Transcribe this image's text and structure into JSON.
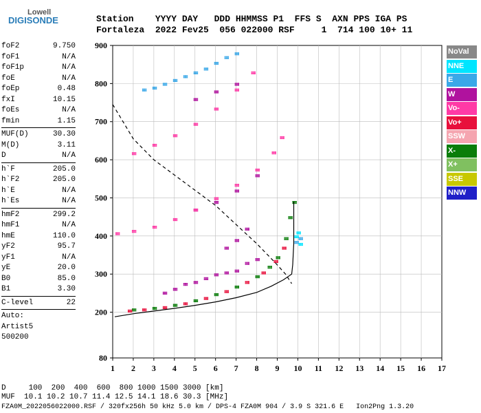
{
  "logo": {
    "top": "Lowell",
    "bottom": "DIGISONDE"
  },
  "header": {
    "row1": "Station    YYYY DAY   DDD HHMMSS P1  FFS S  AXN PPS IGA PS",
    "row2": "Fortaleza  2022 Fev25  056 022000 RSF     1  714 100 10+ 11"
  },
  "params": [
    {
      "label": "foF2",
      "value": "9.750"
    },
    {
      "label": "foF1",
      "value": "N/A"
    },
    {
      "label": "foF1p",
      "value": "N/A"
    },
    {
      "label": "foE",
      "value": "N/A"
    },
    {
      "label": "foEp",
      "value": "0.48"
    },
    {
      "label": "fxI",
      "value": "10.15"
    },
    {
      "label": "foEs",
      "value": "N/A"
    },
    {
      "label": "fmin",
      "value": "1.15"
    },
    {
      "sep": true
    },
    {
      "label": "MUF(D)",
      "value": "30.30"
    },
    {
      "label": "M(D)",
      "value": "3.11"
    },
    {
      "label": "D",
      "value": "N/A"
    },
    {
      "sep": true
    },
    {
      "label": "h`F",
      "value": "205.0"
    },
    {
      "label": "h`F2",
      "value": "205.0"
    },
    {
      "label": "h`E",
      "value": "N/A"
    },
    {
      "label": "h`Es",
      "value": "N/A"
    },
    {
      "sep": true
    },
    {
      "label": "hmF2",
      "value": "299.2"
    },
    {
      "label": "hmF1",
      "value": "N/A"
    },
    {
      "label": "hmE",
      "value": "110.0"
    },
    {
      "label": "yF2",
      "value": "95.7"
    },
    {
      "label": "yF1",
      "value": "N/A"
    },
    {
      "label": "yE",
      "value": "20.0"
    },
    {
      "label": "B0",
      "value": "85.0"
    },
    {
      "label": "B1",
      "value": "3.30"
    },
    {
      "sep": true
    },
    {
      "label": "C-level",
      "value": "22"
    },
    {
      "sep": true
    },
    {
      "label": "Auto:",
      "value": ""
    },
    {
      "label": "Artist5",
      "value": ""
    },
    {
      "label": "500200",
      "value": ""
    }
  ],
  "legend": [
    {
      "label": "NoVal",
      "color": "#888888"
    },
    {
      "label": "NNE",
      "color": "#00e5ff"
    },
    {
      "label": "E",
      "color": "#3aa8e8"
    },
    {
      "label": "W",
      "color": "#b0129e"
    },
    {
      "label": "Vo-",
      "color": "#ff3aa6"
    },
    {
      "label": "Vo+",
      "color": "#e8103c"
    },
    {
      "label": "SSW",
      "color": "#f5a5b0"
    },
    {
      "label": "X-",
      "color": "#0a7d0a"
    },
    {
      "label": "X+",
      "color": "#80c060"
    },
    {
      "label": "SSE",
      "color": "#c8c800"
    },
    {
      "label": "NNW",
      "color": "#2020c8"
    }
  ],
  "footer": {
    "row1": "D     100  200  400  600  800 1000 1500 3000 [km]",
    "row2": "MUF  10.1 10.2 10.7 11.4 12.5 14.1 18.6 30.3 [MHz]",
    "row3": "FZA0M_2022056022000.RSF / 320fx256h 50 kHz 5.0 km / DPS-4 FZA0M 904 / 3.9 S 321.6 E   Ion2Png 1.3.20"
  },
  "chart_data": {
    "type": "scatter",
    "xlim": [
      1,
      17
    ],
    "ylim": [
      80,
      900
    ],
    "x_ticks": [
      1,
      2,
      3,
      4,
      5,
      6,
      7,
      8,
      9,
      10,
      11,
      12,
      13,
      14,
      15,
      16,
      17
    ],
    "y_ticks": [
      80,
      200,
      300,
      400,
      500,
      600,
      700,
      800,
      900
    ],
    "grid": true,
    "series": [
      {
        "name": "X-",
        "color": "#0a7d0a",
        "points": [
          [
            2.0,
            208
          ],
          [
            3.0,
            212
          ],
          [
            4.0,
            220
          ],
          [
            5.0,
            232
          ],
          [
            6.0,
            248
          ],
          [
            7.0,
            268
          ],
          [
            8.0,
            295
          ],
          [
            8.6,
            320
          ],
          [
            9.0,
            345
          ],
          [
            9.4,
            395
          ],
          [
            9.6,
            450
          ],
          [
            9.8,
            490
          ]
        ]
      },
      {
        "name": "Vo+",
        "color": "#e8103c",
        "points": [
          [
            1.8,
            205
          ],
          [
            2.5,
            208
          ],
          [
            3.5,
            214
          ],
          [
            4.5,
            224
          ],
          [
            5.5,
            238
          ],
          [
            6.5,
            256
          ],
          [
            7.5,
            280
          ],
          [
            8.3,
            305
          ],
          [
            8.9,
            335
          ],
          [
            9.3,
            370
          ]
        ]
      },
      {
        "name": "W",
        "color": "#b0129e",
        "points": [
          [
            3.5,
            252
          ],
          [
            4.0,
            262
          ],
          [
            4.5,
            275
          ],
          [
            5.0,
            280
          ],
          [
            5.5,
            290
          ],
          [
            6.0,
            300
          ],
          [
            6.5,
            305
          ],
          [
            7.0,
            310
          ],
          [
            7.5,
            330
          ],
          [
            8.0,
            340
          ],
          [
            6.5,
            370
          ],
          [
            7.0,
            390
          ],
          [
            7.5,
            420
          ],
          [
            5.0,
            470
          ],
          [
            6.0,
            490
          ],
          [
            7.0,
            520
          ],
          [
            8.0,
            560
          ],
          [
            5.0,
            760
          ],
          [
            6.0,
            780
          ],
          [
            7.0,
            800
          ]
        ]
      },
      {
        "name": "Vo-",
        "color": "#ff3aa6",
        "points": [
          [
            1.2,
            408
          ],
          [
            2.0,
            414
          ],
          [
            3.0,
            425
          ],
          [
            4.0,
            445
          ],
          [
            5.0,
            470
          ],
          [
            6.0,
            500
          ],
          [
            7.0,
            535
          ],
          [
            8.0,
            575
          ],
          [
            8.8,
            620
          ],
          [
            9.2,
            660
          ],
          [
            2.0,
            618
          ],
          [
            3.0,
            640
          ],
          [
            4.0,
            665
          ],
          [
            5.0,
            695
          ],
          [
            6.0,
            735
          ],
          [
            7.0,
            785
          ],
          [
            7.8,
            830
          ]
        ]
      },
      {
        "name": "E",
        "color": "#3aa8e8",
        "points": [
          [
            2.5,
            785
          ],
          [
            3.0,
            790
          ],
          [
            3.5,
            800
          ],
          [
            4.0,
            810
          ],
          [
            4.5,
            820
          ],
          [
            5.0,
            830
          ],
          [
            5.5,
            840
          ],
          [
            6.0,
            855
          ],
          [
            6.5,
            870
          ],
          [
            7.0,
            880
          ],
          [
            9.9,
            385
          ],
          [
            10.1,
            395
          ]
        ]
      },
      {
        "name": "NNE",
        "color": "#00e5ff",
        "points": [
          [
            9.9,
            400
          ],
          [
            10.0,
            410
          ],
          [
            10.1,
            380
          ]
        ]
      }
    ],
    "profile_curve_solid": [
      [
        1.1,
        188
      ],
      [
        2,
        196
      ],
      [
        3,
        203
      ],
      [
        4,
        210
      ],
      [
        5,
        218
      ],
      [
        6,
        227
      ],
      [
        7,
        238
      ],
      [
        8,
        252
      ],
      [
        8.7,
        268
      ],
      [
        9.3,
        285
      ],
      [
        9.7,
        300
      ],
      [
        9.75,
        325
      ],
      [
        9.8,
        380
      ],
      [
        9.8,
        430
      ],
      [
        9.8,
        490
      ]
    ],
    "profile_curve_dashed": [
      [
        1.0,
        745
      ],
      [
        1.5,
        700
      ],
      [
        2,
        655
      ],
      [
        3,
        600
      ],
      [
        4,
        560
      ],
      [
        5,
        520
      ],
      [
        6,
        480
      ],
      [
        7,
        430
      ],
      [
        8,
        380
      ],
      [
        8.9,
        330
      ],
      [
        9.4,
        300
      ],
      [
        9.7,
        275
      ]
    ]
  }
}
